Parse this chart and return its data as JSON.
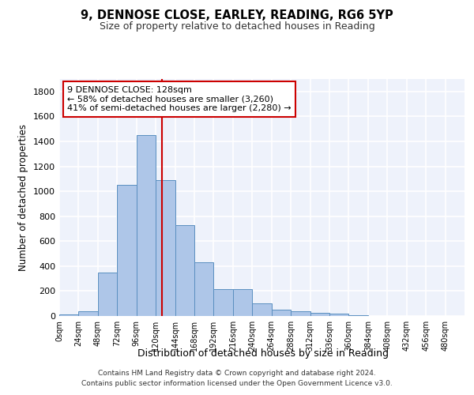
{
  "title1": "9, DENNOSE CLOSE, EARLEY, READING, RG6 5YP",
  "title2": "Size of property relative to detached houses in Reading",
  "xlabel": "Distribution of detached houses by size in Reading",
  "ylabel": "Number of detached properties",
  "bin_labels": [
    "0sqm",
    "24sqm",
    "48sqm",
    "72sqm",
    "96sqm",
    "120sqm",
    "144sqm",
    "168sqm",
    "192sqm",
    "216sqm",
    "240sqm",
    "264sqm",
    "288sqm",
    "312sqm",
    "336sqm",
    "360sqm",
    "384sqm",
    "408sqm",
    "432sqm",
    "456sqm",
    "480sqm"
  ],
  "bar_heights": [
    10,
    35,
    350,
    1050,
    1450,
    1090,
    730,
    430,
    215,
    215,
    100,
    50,
    40,
    28,
    20,
    5,
    3,
    2,
    1,
    0,
    0
  ],
  "bar_color": "#aec6e8",
  "bar_edge_color": "#5a8fc0",
  "bar_width": 1.0,
  "vline_color": "#cc0000",
  "annotation_text": "9 DENNOSE CLOSE: 128sqm\n← 58% of detached houses are smaller (3,260)\n41% of semi-detached houses are larger (2,280) →",
  "annotation_box_color": "#cc0000",
  "annotation_text_color": "#000000",
  "ylim": [
    0,
    1900
  ],
  "yticks": [
    0,
    200,
    400,
    600,
    800,
    1000,
    1200,
    1400,
    1600,
    1800
  ],
  "bg_color": "#eef2fb",
  "grid_color": "#ffffff",
  "footer_line1": "Contains HM Land Registry data © Crown copyright and database right 2024.",
  "footer_line2": "Contains public sector information licensed under the Open Government Licence v3.0."
}
